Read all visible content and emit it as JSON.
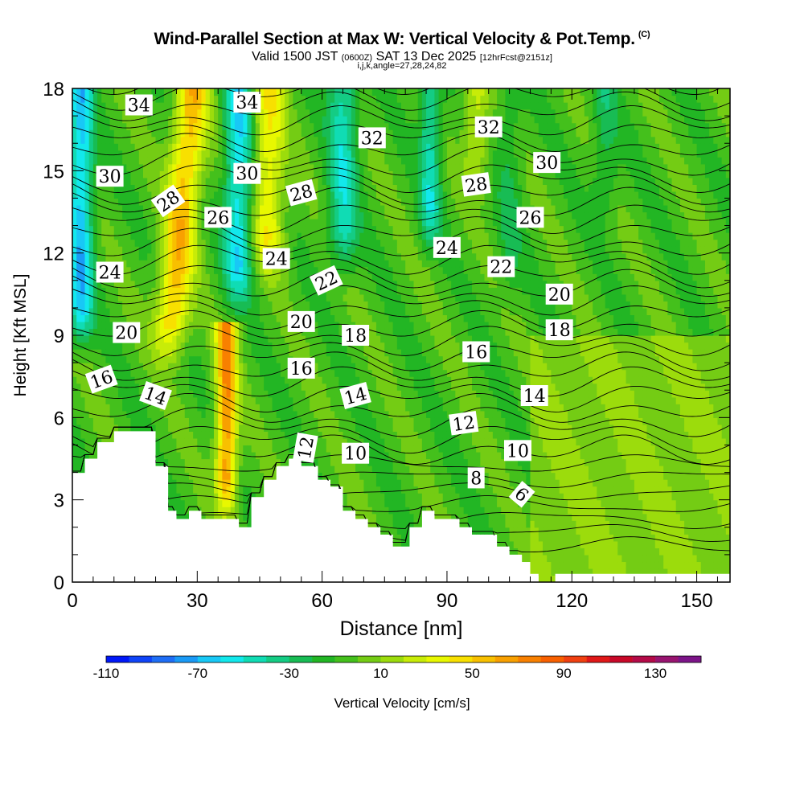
{
  "header": {
    "title": "Wind-Parallel Section at Max W: Vertical Velocity & Pot.Temp.",
    "copyright": "(C)",
    "valid_main": "Valid 1500 JST",
    "valid_utc": "(0600Z)",
    "valid_date": "SAT 13 Dec 2025",
    "forecast": "[12hrFcst@2151z]",
    "indices": "i,j,k,angle=27,28,24,82"
  },
  "chart_data": {
    "type": "heatmap",
    "xlabel": "Distance [nm]",
    "ylabel": "Height [Kft MSL]",
    "xlim": [
      0,
      158
    ],
    "ylim": [
      0,
      18
    ],
    "x_ticks": [
      0,
      30,
      60,
      90,
      120,
      150
    ],
    "y_ticks": [
      0,
      3,
      6,
      9,
      12,
      15,
      18
    ],
    "colorbar": {
      "label": "Vertical Velocity [cm/s]",
      "tick_values": [
        -110,
        -70,
        -30,
        10,
        50,
        90,
        130
      ],
      "min": -110,
      "max": 150,
      "step": 10,
      "colors": [
        "#0018f8",
        "#0f44f8",
        "#1e6ef6",
        "#1a9af6",
        "#18c8f6",
        "#12e8ec",
        "#10dcb4",
        "#14cc84",
        "#18bc54",
        "#22b624",
        "#44c01c",
        "#74cc14",
        "#9cdc0c",
        "#c8ec08",
        "#e8f800",
        "#f8e000",
        "#f8c000",
        "#f8a000",
        "#f88000",
        "#f86000",
        "#f04010",
        "#e01818",
        "#c80828",
        "#b40a48",
        "#981470",
        "#7c1488"
      ]
    },
    "terrain_kft": {
      "x": [
        0,
        3,
        3,
        6,
        6,
        10,
        10,
        20,
        20,
        23,
        23,
        25,
        25,
        28,
        28,
        31,
        31,
        37,
        37,
        40,
        40,
        43,
        43,
        46,
        46,
        49,
        49,
        52,
        52,
        55,
        55,
        59,
        59,
        62,
        62,
        65,
        65,
        68,
        68,
        71,
        71,
        74,
        74,
        77,
        77,
        81,
        81,
        84,
        84,
        87,
        87,
        93,
        93,
        96,
        96,
        102,
        102,
        105,
        105,
        108,
        108,
        110,
        110,
        112,
        112,
        114,
        114,
        116,
        116,
        118,
        118,
        158
      ],
      "z": [
        3.9,
        3.9,
        4.5,
        4.5,
        5.1,
        5.1,
        5.5,
        5.5,
        4.2,
        4.2,
        2.6,
        2.6,
        2.3,
        2.3,
        2.6,
        2.6,
        2.3,
        2.3,
        2.3,
        2.3,
        2.0,
        2.0,
        3.1,
        3.1,
        3.7,
        3.7,
        4.2,
        4.2,
        4.5,
        4.5,
        4.2,
        4.2,
        3.7,
        3.7,
        3.4,
        3.4,
        2.6,
        2.6,
        2.3,
        2.3,
        2.0,
        2.0,
        1.7,
        1.7,
        1.3,
        1.3,
        2.0,
        2.0,
        2.6,
        2.6,
        2.3,
        2.3,
        2.0,
        2.0,
        1.7,
        1.7,
        1.3,
        1.3,
        1.0,
        1.0,
        0.7,
        0.7,
        0.3,
        0.3,
        0.0,
        0.0,
        0.0,
        0.0,
        0.3,
        0.3,
        0.3,
        0.3
      ]
    },
    "contour_labels": [
      {
        "text": "34",
        "x": 16,
        "z": 17.4,
        "angle": 0
      },
      {
        "text": "34",
        "x": 42,
        "z": 17.5,
        "angle": 0
      },
      {
        "text": "32",
        "x": 72,
        "z": 16.2,
        "angle": 0
      },
      {
        "text": "32",
        "x": 100,
        "z": 16.6,
        "angle": 0
      },
      {
        "text": "30",
        "x": 9,
        "z": 14.8,
        "angle": 0
      },
      {
        "text": "30",
        "x": 42,
        "z": 14.9,
        "angle": 0
      },
      {
        "text": "30",
        "x": 114,
        "z": 15.3,
        "angle": 0
      },
      {
        "text": "28",
        "x": 23,
        "z": 13.9,
        "angle": -35
      },
      {
        "text": "28",
        "x": 55,
        "z": 14.2,
        "angle": -15
      },
      {
        "text": "28",
        "x": 97,
        "z": 14.5,
        "angle": -8
      },
      {
        "text": "26",
        "x": 35,
        "z": 13.3,
        "angle": 0
      },
      {
        "text": "26",
        "x": 110,
        "z": 13.3,
        "angle": 0
      },
      {
        "text": "24",
        "x": 9,
        "z": 11.3,
        "angle": 0
      },
      {
        "text": "24",
        "x": 49,
        "z": 11.8,
        "angle": 0
      },
      {
        "text": "24",
        "x": 90,
        "z": 12.2,
        "angle": 0
      },
      {
        "text": "22",
        "x": 61,
        "z": 11.0,
        "angle": -25
      },
      {
        "text": "22",
        "x": 103,
        "z": 11.5,
        "angle": 0
      },
      {
        "text": "20",
        "x": 13,
        "z": 9.1,
        "angle": 0
      },
      {
        "text": "20",
        "x": 55,
        "z": 9.5,
        "angle": 0
      },
      {
        "text": "20",
        "x": 117,
        "z": 10.5,
        "angle": 0
      },
      {
        "text": "18",
        "x": 68,
        "z": 9.0,
        "angle": 0
      },
      {
        "text": "18",
        "x": 117,
        "z": 9.2,
        "angle": 0
      },
      {
        "text": "16",
        "x": 7,
        "z": 7.4,
        "angle": -20
      },
      {
        "text": "16",
        "x": 55,
        "z": 7.8,
        "angle": 0
      },
      {
        "text": "16",
        "x": 97,
        "z": 8.4,
        "angle": 0
      },
      {
        "text": "14",
        "x": 20,
        "z": 6.8,
        "angle": 20
      },
      {
        "text": "14",
        "x": 68,
        "z": 6.8,
        "angle": -15
      },
      {
        "text": "14",
        "x": 111,
        "z": 6.8,
        "angle": 0
      },
      {
        "text": "12",
        "x": 56,
        "z": 4.9,
        "angle": -80
      },
      {
        "text": "12",
        "x": 94,
        "z": 5.8,
        "angle": -8
      },
      {
        "text": "10",
        "x": 68,
        "z": 4.7,
        "angle": 0
      },
      {
        "text": "10",
        "x": 107,
        "z": 4.8,
        "angle": 0
      },
      {
        "text": "8",
        "x": 97,
        "z": 3.8,
        "angle": 0
      },
      {
        "text": "6",
        "x": 108,
        "z": 3.2,
        "angle": 40
      }
    ],
    "w_features": [
      {
        "x": 2,
        "z_top": 18,
        "z_bot": 8.5,
        "width": 3,
        "w": -60
      },
      {
        "x": 40,
        "z_top": 18,
        "z_bot": 10,
        "width": 3.5,
        "w": -55
      },
      {
        "x": 65,
        "z_top": 18,
        "z_bot": 11,
        "width": 3.5,
        "w": -40
      },
      {
        "x": 86,
        "z_top": 18,
        "z_bot": 12,
        "width": 2.5,
        "w": -40
      },
      {
        "x": 23,
        "z_top": 18,
        "z_bot": 8,
        "width": 4,
        "w": 60
      },
      {
        "x": 47,
        "z_top": 18,
        "z_bot": 11,
        "width": 4,
        "w": 45
      },
      {
        "x": 37,
        "z_top": 9,
        "z_bot": 2.3,
        "width": 2.5,
        "w": 75
      },
      {
        "x": 97,
        "z_top": 18,
        "z_bot": 14,
        "width": 3,
        "w": 30
      },
      {
        "x": 105,
        "z_top": 18,
        "z_bot": 10,
        "width": 3,
        "w": -15
      },
      {
        "x": 128,
        "z_top": 18,
        "z_bot": 13,
        "width": 3,
        "w": -20
      }
    ],
    "legend_position": "bottom"
  }
}
